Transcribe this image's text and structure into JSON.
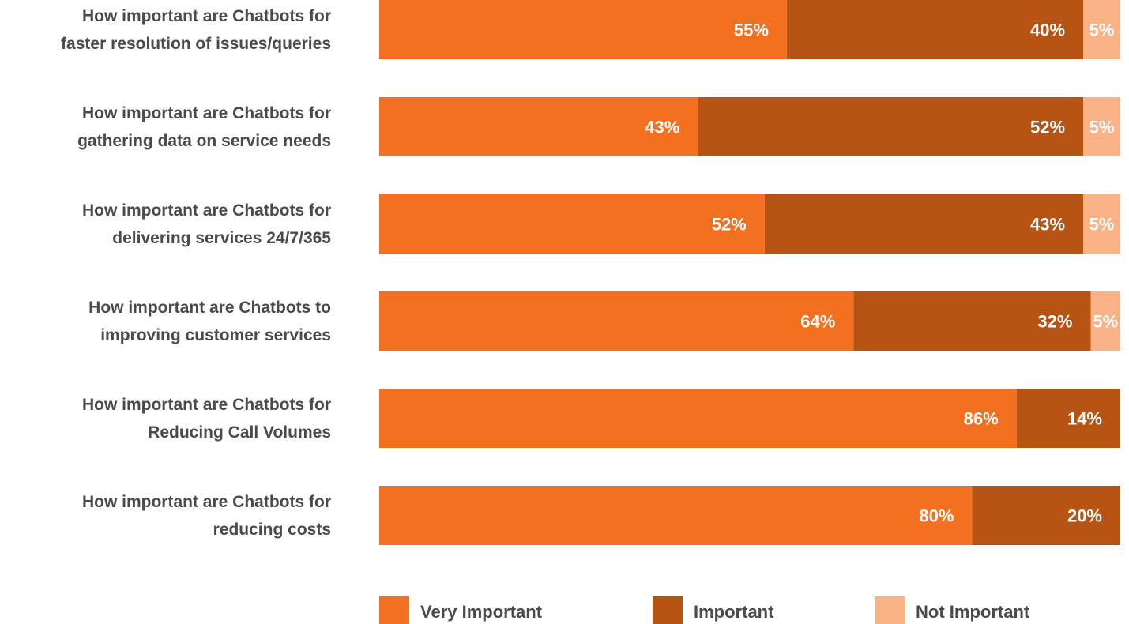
{
  "chart_data": {
    "type": "bar",
    "orientation": "horizontal",
    "stacked": true,
    "categories": [
      [
        "How important are Chatbots for",
        "faster resolution of issues/queries"
      ],
      [
        "How important are Chatbots for",
        "gathering data on service needs"
      ],
      [
        "How important are Chatbots for",
        "delivering services 24/7/365"
      ],
      [
        "How important are Chatbots to",
        "improving customer services"
      ],
      [
        "How important are Chatbots for",
        "Reducing Call Volumes"
      ],
      [
        "How important are Chatbots for",
        "reducing costs"
      ]
    ],
    "series": [
      {
        "name": "Very Important",
        "color": "#F37021",
        "values": [
          55,
          43,
          52,
          64,
          86,
          80
        ]
      },
      {
        "name": "Important",
        "color": "#B85413",
        "values": [
          40,
          52,
          43,
          32,
          14,
          20
        ]
      },
      {
        "name": "Not Important",
        "color": "#F9B386",
        "values": [
          5,
          5,
          5,
          5,
          0,
          0
        ]
      }
    ],
    "value_suffix": "%",
    "xlim": [
      0,
      100
    ],
    "grid": false,
    "legend_position": "bottom"
  }
}
